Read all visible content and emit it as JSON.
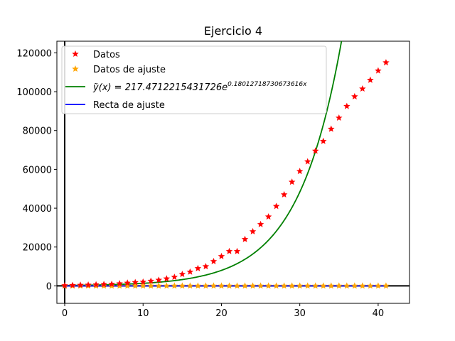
{
  "chart_data": {
    "type": "scatter",
    "title": "Ejercicio 4",
    "xlabel": "",
    "ylabel": "",
    "xlim": [
      -1,
      44
    ],
    "ylim": [
      -9000,
      126000
    ],
    "x_ticks": [
      0,
      10,
      20,
      30,
      40
    ],
    "y_ticks": [
      0,
      20000,
      40000,
      60000,
      80000,
      100000,
      120000
    ],
    "grid": false,
    "legend_position": "top-left",
    "series": [
      {
        "name": "Datos",
        "kind": "markers",
        "marker": "star",
        "color": "#ff0000",
        "x": [
          0,
          1,
          2,
          3,
          4,
          5,
          6,
          7,
          8,
          9,
          10,
          11,
          12,
          13,
          14,
          15,
          16,
          17,
          18,
          19,
          20,
          21,
          22,
          23,
          24,
          25,
          26,
          27,
          28,
          29,
          30,
          31,
          32,
          33,
          34,
          35,
          36,
          37,
          38,
          39,
          40,
          41
        ],
        "y": [
          200,
          300,
          400,
          500,
          650,
          800,
          900,
          1200,
          1500,
          1800,
          2000,
          2500,
          3000,
          3700,
          4500,
          6000,
          7200,
          9000,
          10000,
          12600,
          15200,
          17800,
          17800,
          24000,
          28000,
          31700,
          35600,
          41000,
          47000,
          53500,
          59000,
          64000,
          69500,
          74500,
          80800,
          86500,
          92500,
          97500,
          101500,
          106000,
          110800,
          115000
        ]
      },
      {
        "name": "Datos de ajuste",
        "kind": "markers",
        "marker": "star",
        "color": "#ffa500",
        "x": [
          0,
          1,
          2,
          3,
          4,
          5,
          6,
          7,
          8,
          9,
          10,
          11,
          12,
          13,
          14,
          15,
          16,
          17,
          18,
          19,
          20,
          21,
          22,
          23,
          24,
          25,
          26,
          27,
          28,
          29,
          30,
          31,
          32,
          33,
          34,
          35,
          36,
          37,
          38,
          39,
          40,
          41
        ],
        "y": [
          5.3,
          5.7,
          6,
          6.4,
          6.5,
          6.7,
          6.8,
          7.1,
          7.3,
          7.5,
          7.6,
          7.8,
          8,
          8.2,
          8.4,
          8.7,
          8.9,
          9.1,
          9.2,
          9.4,
          9.6,
          9.8,
          9.8,
          10.1,
          10.2,
          10.4,
          10.5,
          10.6,
          10.8,
          10.9,
          11,
          11.1,
          11.2,
          11.2,
          11.3,
          11.4,
          11.4,
          11.5,
          11.5,
          11.6,
          11.6,
          11.7
        ]
      },
      {
        "name": "ỹ(x) = 217.4712215431726e^{0.18012718730673616x}",
        "kind": "curve",
        "color": "#008000",
        "function": {
          "a": 217.4712215431726,
          "b": 0.18012718730673616
        }
      },
      {
        "name": "Recta de ajuste",
        "kind": "line",
        "color": "#0000ff",
        "x": [
          0,
          41
        ],
        "y": [
          5.3,
          11.7
        ]
      }
    ],
    "legend": {
      "datos": "Datos",
      "datos_ajuste": "Datos de ajuste",
      "curve_prefix": "ỹ(x) = 217.4712215431726e",
      "curve_exponent": "0.18012718730673616x",
      "recta": "Recta de ajuste"
    }
  }
}
